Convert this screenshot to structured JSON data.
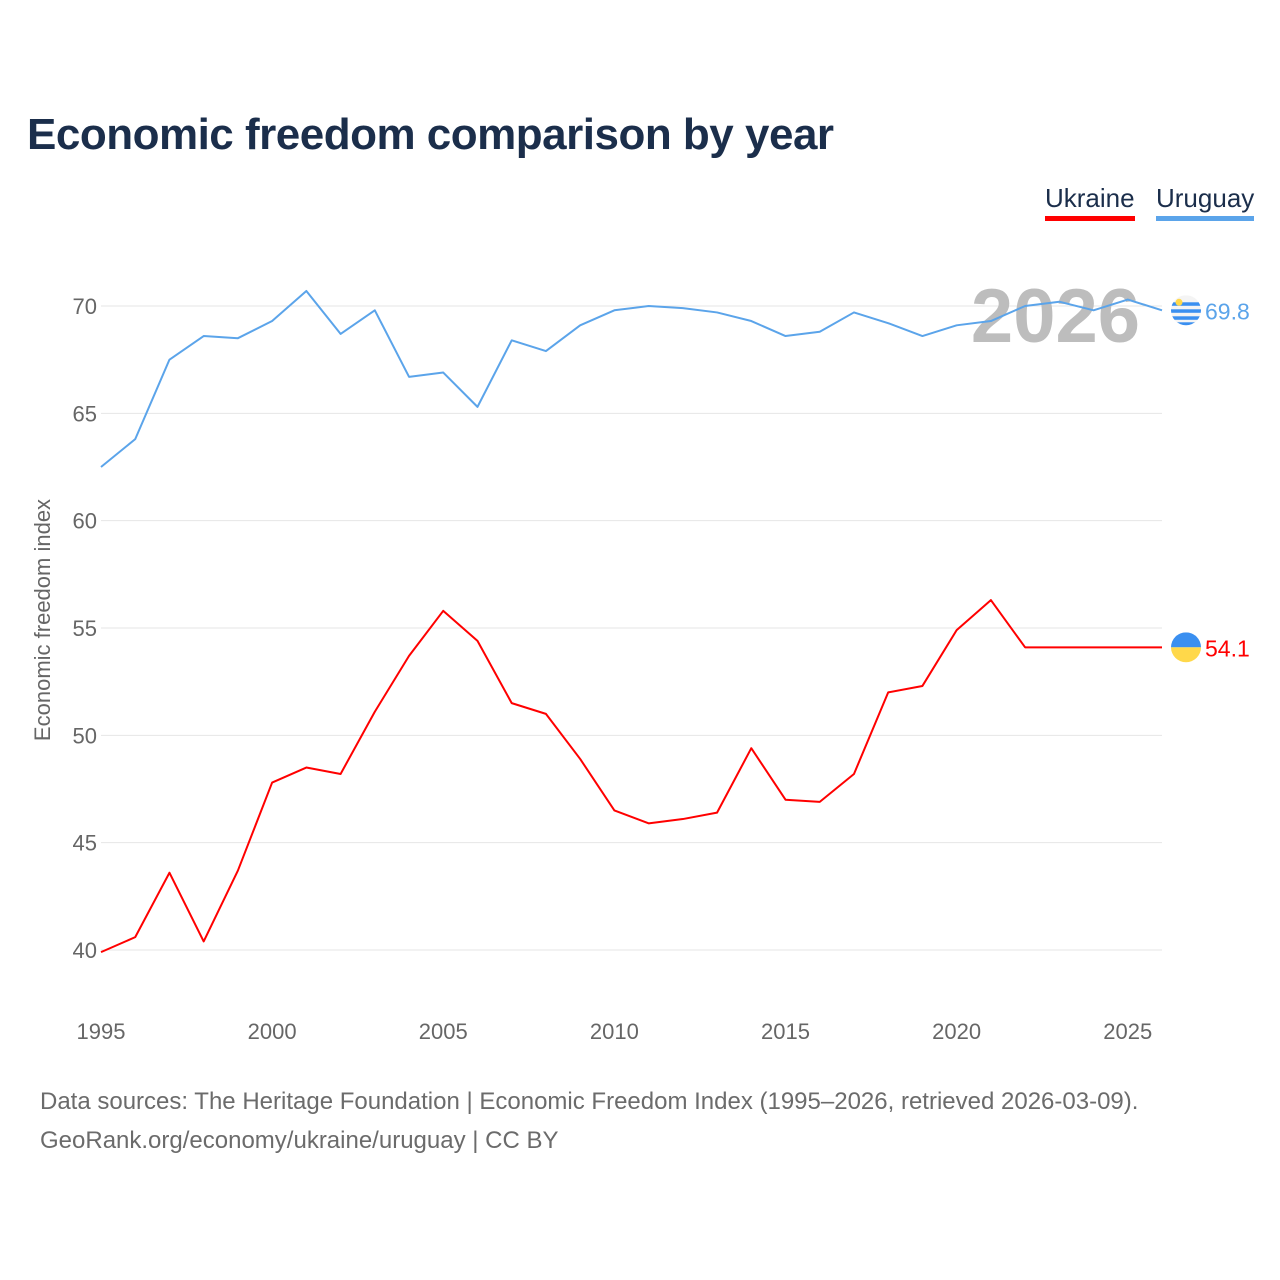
{
  "chart_data": {
    "type": "line",
    "title": "Economic freedom comparison by year",
    "ylabel": "Economic freedom index",
    "xlabel": "",
    "ylim": [
      37,
      72.5
    ],
    "xlim": [
      1995,
      2026
    ],
    "yticks": [
      40,
      45,
      50,
      55,
      60,
      65,
      70
    ],
    "xticks": [
      1995,
      2000,
      2005,
      2010,
      2015,
      2020,
      2025
    ],
    "grid": true,
    "legend_position": "top-right",
    "year_watermark": "2026",
    "x": [
      1995,
      1996,
      1997,
      1998,
      1999,
      2000,
      2001,
      2002,
      2003,
      2004,
      2005,
      2006,
      2007,
      2008,
      2009,
      2010,
      2011,
      2012,
      2013,
      2014,
      2015,
      2016,
      2017,
      2018,
      2019,
      2020,
      2021,
      2022,
      2023,
      2024,
      2025,
      2026
    ],
    "series": [
      {
        "name": "Ukraine",
        "color": "#ff0000",
        "end_label": "54.1",
        "values": [
          39.9,
          40.6,
          43.6,
          40.4,
          43.7,
          47.8,
          48.5,
          48.2,
          51.1,
          53.7,
          55.8,
          54.4,
          51.5,
          51.0,
          48.9,
          46.5,
          45.9,
          46.1,
          46.4,
          49.4,
          47.0,
          46.9,
          48.2,
          52.0,
          52.3,
          54.9,
          56.3,
          54.1,
          54.1,
          54.1,
          54.1,
          54.1
        ]
      },
      {
        "name": "Uruguay",
        "color": "#5ba4ea",
        "end_label": "69.8",
        "values": [
          62.5,
          63.8,
          67.5,
          68.6,
          68.5,
          69.3,
          70.7,
          68.7,
          69.8,
          66.7,
          66.9,
          65.3,
          68.4,
          67.9,
          69.1,
          69.8,
          70.0,
          69.9,
          69.7,
          69.3,
          68.6,
          68.8,
          69.7,
          69.2,
          68.6,
          69.1,
          69.3,
          70.0,
          70.2,
          69.8,
          70.3,
          69.8
        ]
      }
    ]
  },
  "footer": {
    "line1": "Data sources: The Heritage Foundation | Economic Freedom Index (1995–2026, retrieved 2026-03-09).",
    "line2": "GeoRank.org/economy/ukraine/uruguay | CC BY"
  }
}
